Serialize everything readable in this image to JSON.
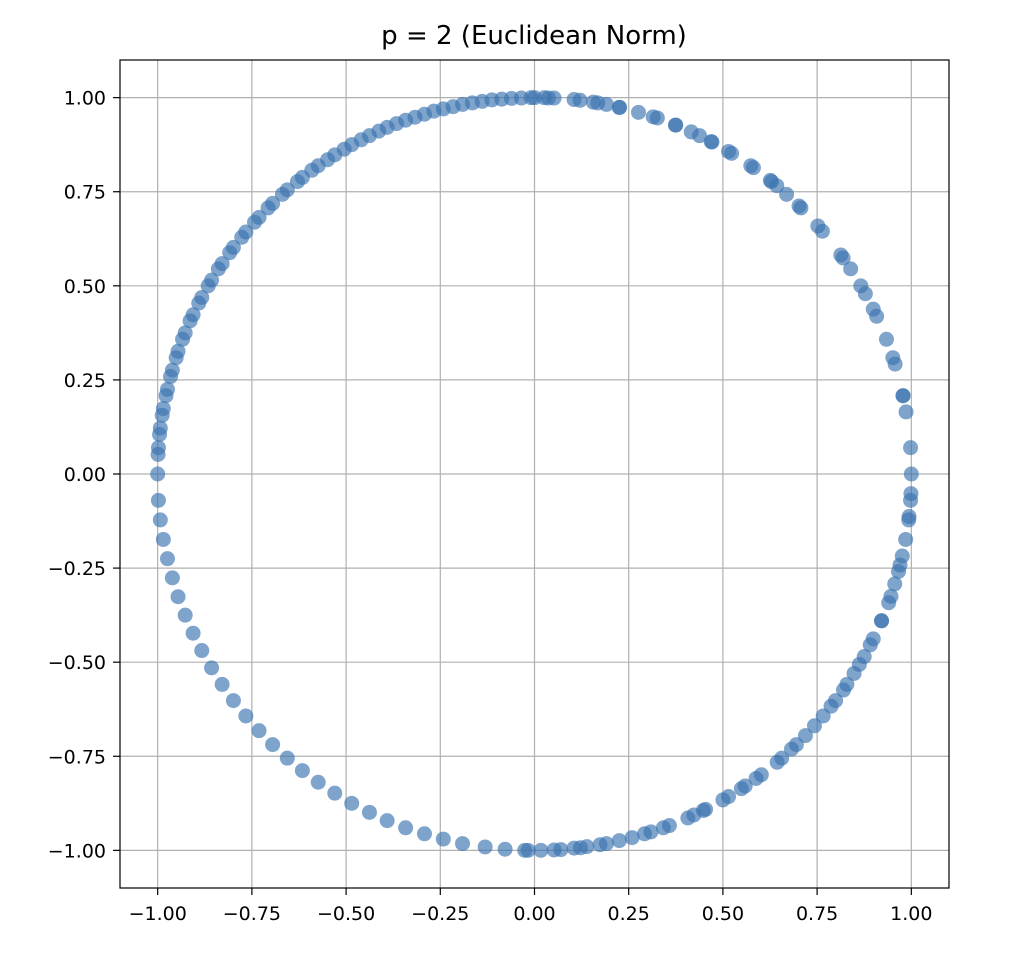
{
  "chart_data": {
    "type": "scatter",
    "title": "p = 2 (Euclidean Norm)",
    "xlabel": "",
    "ylabel": "",
    "xlim": [
      -1.1,
      1.1
    ],
    "ylim": [
      -1.1,
      1.1
    ],
    "xticks": [
      -1.0,
      -0.75,
      -0.5,
      -0.25,
      0.0,
      0.25,
      0.5,
      0.75,
      1.0
    ],
    "yticks": [
      -1.0,
      -0.75,
      -0.5,
      -0.25,
      0.0,
      0.25,
      0.5,
      0.75,
      1.0
    ],
    "xtick_labels": [
      "−1.00",
      "−0.75",
      "−0.50",
      "−0.25",
      "0.00",
      "0.25",
      "0.50",
      "0.75",
      "1.00"
    ],
    "ytick_labels": [
      "−1.00",
      "−0.75",
      "−0.50",
      "−0.25",
      "0.00",
      "0.25",
      "0.50",
      "0.75",
      "1.00"
    ],
    "grid": true,
    "marker_color": "#3a73b1",
    "marker_alpha": 0.65,
    "series": [
      {
        "x": [
          0.0,
          0.037,
          0.121,
          0.168,
          0.226,
          0.315,
          0.374,
          0.416,
          0.471,
          0.523,
          0.581,
          0.626,
          0.643,
          0.702,
          0.752,
          0.813,
          0.839,
          0.878,
          0.899,
          0.934,
          0.957,
          0.978,
          0.986,
          0.998,
          1.0,
          0.998,
          0.994,
          0.976,
          0.966,
          0.946,
          0.921,
          0.891,
          0.862,
          0.829,
          0.787,
          0.743,
          0.695,
          0.644,
          0.588,
          0.549,
          0.5,
          0.448,
          0.407,
          0.342,
          0.292,
          0.225,
          0.174,
          0.122,
          0.07,
          0.017,
          -0.026,
          -0.078,
          -0.131,
          -0.191,
          -0.242,
          -0.292,
          -0.342,
          -0.391,
          -0.438,
          -0.485,
          -0.53,
          -0.574,
          -0.616,
          -0.656,
          -0.695,
          -0.731,
          -0.766,
          -0.799,
          -0.829,
          -0.857,
          -0.883,
          -0.906,
          -0.927,
          -0.946,
          -0.961,
          -0.974,
          -0.985,
          -0.993,
          -0.998,
          -1.0,
          -0.998,
          -0.993,
          -0.985,
          -0.974,
          -0.961,
          -0.946,
          -0.927,
          -0.906,
          -0.883,
          -0.857,
          -0.829,
          -0.799,
          -0.766,
          -0.731,
          -0.695,
          -0.656,
          -0.616,
          -0.574,
          -0.53,
          -0.485,
          -0.438,
          -0.391,
          -0.342,
          -0.292,
          -0.242,
          -0.191,
          -0.139,
          -0.087,
          -0.035,
          0.026,
          -0.017,
          0.052,
          0.105,
          0.139,
          0.191,
          0.259,
          0.309,
          0.358,
          0.423,
          0.454,
          0.515,
          0.559,
          0.602,
          0.656,
          0.682,
          0.719,
          0.766,
          0.799,
          0.82,
          0.848,
          0.875,
          0.899,
          0.921,
          0.94,
          0.956,
          0.97,
          0.985,
          0.993,
          0.999,
          0.978,
          0.951,
          0.908,
          0.866,
          0.819,
          0.764,
          0.707,
          0.669,
          0.629,
          0.574,
          0.515,
          0.469,
          0.438,
          0.375,
          0.326,
          0.276,
          0.225,
          0.191,
          0.156,
          0.105,
          0.052,
          -0.009,
          -0.061,
          -0.113,
          -0.165,
          -0.216,
          -0.267,
          -0.317,
          -0.366,
          -0.413,
          -0.46,
          -0.505,
          -0.549,
          -0.591,
          -0.629,
          -0.669,
          -0.707,
          -0.743,
          -0.777,
          -0.809,
          -0.839,
          -0.866,
          -0.891,
          -0.914,
          -0.934,
          -0.951,
          -0.966,
          -0.978,
          -0.988,
          -0.995,
          -0.999
        ],
        "y": [
          1.0,
          0.999,
          0.993,
          0.986,
          0.974,
          0.949,
          0.927,
          0.909,
          0.882,
          0.852,
          0.814,
          0.78,
          0.766,
          0.712,
          0.659,
          0.582,
          0.545,
          0.479,
          0.438,
          0.358,
          0.292,
          0.208,
          0.165,
          0.07,
          0.0,
          -0.07,
          -0.113,
          -0.218,
          -0.259,
          -0.325,
          -0.39,
          -0.454,
          -0.506,
          -0.559,
          -0.617,
          -0.669,
          -0.719,
          -0.766,
          -0.809,
          -0.836,
          -0.866,
          -0.894,
          -0.914,
          -0.94,
          -0.956,
          -0.974,
          -0.985,
          -0.993,
          -0.998,
          -1.0,
          -1.0,
          -0.997,
          -0.991,
          -0.982,
          -0.97,
          -0.956,
          -0.94,
          -0.921,
          -0.899,
          -0.875,
          -0.848,
          -0.819,
          -0.788,
          -0.755,
          -0.719,
          -0.682,
          -0.643,
          -0.602,
          -0.559,
          -0.515,
          -0.469,
          -0.423,
          -0.375,
          -0.326,
          -0.276,
          -0.225,
          -0.174,
          -0.122,
          -0.07,
          0.0,
          0.07,
          0.122,
          0.174,
          0.225,
          0.276,
          0.326,
          0.375,
          0.423,
          0.469,
          0.515,
          0.559,
          0.602,
          0.643,
          0.682,
          0.719,
          0.755,
          0.788,
          0.819,
          0.848,
          0.875,
          0.899,
          0.921,
          0.94,
          0.956,
          0.97,
          0.982,
          0.99,
          0.996,
          0.999,
          1.0,
          -1.0,
          -0.999,
          -0.994,
          -0.99,
          -0.982,
          -0.966,
          -0.951,
          -0.934,
          -0.906,
          -0.891,
          -0.857,
          -0.829,
          -0.799,
          -0.755,
          -0.731,
          -0.695,
          -0.643,
          -0.602,
          -0.574,
          -0.53,
          -0.485,
          -0.438,
          -0.39,
          -0.342,
          -0.292,
          -0.242,
          -0.174,
          -0.122,
          -0.052,
          0.208,
          0.309,
          0.419,
          0.5,
          0.574,
          0.645,
          0.707,
          0.743,
          0.777,
          0.819,
          0.857,
          0.883,
          0.899,
          0.927,
          0.946,
          0.961,
          0.974,
          0.982,
          0.988,
          0.995,
          0.999,
          1.0,
          0.998,
          0.994,
          0.986,
          0.976,
          0.964,
          0.948,
          0.931,
          0.911,
          0.888,
          0.863,
          0.835,
          0.807,
          0.777,
          0.743,
          0.707,
          0.669,
          0.629,
          0.588,
          0.545,
          0.5,
          0.454,
          0.407,
          0.358,
          0.309,
          0.259,
          0.208,
          0.156,
          0.105,
          0.052
        ]
      }
    ]
  }
}
